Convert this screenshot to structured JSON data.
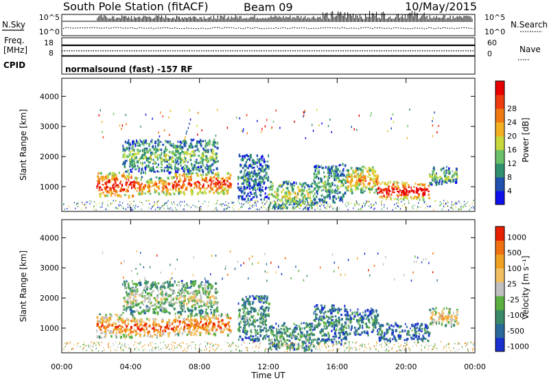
{
  "header": {
    "title": "South Pole Station (fitACF)",
    "beam": "Beam 09",
    "date": "10/May/2015"
  },
  "top_panels": {
    "nsky_label": "N.Sky",
    "nsearch_label": "N.Search",
    "freq_label_line1": "Freq.",
    "freq_label_line2": "[MHz]",
    "nave_label": "Nave",
    "cpid_label": "CPID",
    "cpid_text": "normalsound (fast) -157 RF",
    "noise_ticks_left": [
      "10^5",
      "10^0"
    ],
    "noise_ticks_right": [
      "10^5",
      "10^0"
    ],
    "freq_ticks": [
      "18",
      "8"
    ],
    "nave_ticks": [
      "60",
      "0"
    ]
  },
  "chart_data": [
    {
      "type": "heatmap",
      "title": "",
      "xlabel": "",
      "ylabel": "Slant Range [km]",
      "xlim": [
        0,
        24
      ],
      "ylim": [
        180,
        4600
      ],
      "yticks": [
        "1000",
        "2000",
        "3000",
        "4000"
      ],
      "colorbar_label": "Power [dB]",
      "colorbar_ticks": [
        "4",
        "8",
        "12",
        "16",
        "20",
        "24",
        "28"
      ],
      "colormap": [
        "#1010ee",
        "#2050b0",
        "#2f8f6e",
        "#6cc06a",
        "#c8d83a",
        "#f4b020",
        "#f07a10",
        "#f03a10",
        "#e80000"
      ],
      "echo_regions": [
        {
          "t0": 2.0,
          "t1": 4.2,
          "r0": 700,
          "r1": 1500,
          "level": 0.85
        },
        {
          "t0": 4.2,
          "t1": 6.5,
          "r0": 750,
          "r1": 1350,
          "level": 0.7
        },
        {
          "t0": 6.5,
          "t1": 9.8,
          "r0": 800,
          "r1": 1500,
          "level": 0.8
        },
        {
          "t0": 3.5,
          "t1": 9.0,
          "r0": 1500,
          "r1": 2600,
          "level": 0.35
        },
        {
          "t0": 10.2,
          "t1": 12.0,
          "r0": 600,
          "r1": 2100,
          "level": 0.25
        },
        {
          "t0": 12.0,
          "t1": 14.6,
          "r0": 300,
          "r1": 1200,
          "level": 0.45
        },
        {
          "t0": 14.6,
          "t1": 16.5,
          "r0": 500,
          "r1": 1800,
          "level": 0.3
        },
        {
          "t0": 16.5,
          "t1": 18.3,
          "r0": 800,
          "r1": 1700,
          "level": 0.6
        },
        {
          "t0": 18.3,
          "t1": 21.3,
          "r0": 600,
          "r1": 1200,
          "level": 0.9
        },
        {
          "t0": 21.3,
          "t1": 23.0,
          "r0": 1100,
          "r1": 1700,
          "level": 0.35
        }
      ]
    },
    {
      "type": "heatmap",
      "title": "",
      "xlabel": "Time UT",
      "ylabel": "Slant Range [km]",
      "xlim": [
        0,
        24
      ],
      "ylim": [
        180,
        4600
      ],
      "xticks": [
        "00:00",
        "04:00",
        "08:00",
        "12:00",
        "16:00",
        "20:00",
        "00:00"
      ],
      "yticks": [
        "1000",
        "2000",
        "3000",
        "4000"
      ],
      "colorbar_label": "Velocity [m s⁻¹]",
      "colorbar_ticks": [
        "1000",
        "500",
        "100",
        "25",
        "-25",
        "-100",
        "-500",
        "-1000"
      ],
      "colormap": [
        "#1a30d0",
        "#2a6a9a",
        "#3a8a6a",
        "#5ab040",
        "#c0c0c0",
        "#f0c060",
        "#f0a020",
        "#f07010",
        "#e82000"
      ],
      "echo_regions": [
        {
          "t0": 2.0,
          "t1": 4.2,
          "r0": 700,
          "r1": 1500,
          "level": 0.75
        },
        {
          "t0": 4.2,
          "t1": 6.5,
          "r0": 750,
          "r1": 1350,
          "level": 0.85
        },
        {
          "t0": 6.5,
          "t1": 9.8,
          "r0": 800,
          "r1": 1500,
          "level": 0.8
        },
        {
          "t0": 3.5,
          "t1": 9.0,
          "r0": 1500,
          "r1": 2600,
          "level": 0.45
        },
        {
          "t0": 10.2,
          "t1": 12.0,
          "r0": 600,
          "r1": 2100,
          "level": 0.3
        },
        {
          "t0": 12.0,
          "t1": 14.6,
          "r0": 300,
          "r1": 1200,
          "level": 0.3
        },
        {
          "t0": 14.6,
          "t1": 16.5,
          "r0": 500,
          "r1": 1800,
          "level": 0.25
        },
        {
          "t0": 16.5,
          "t1": 18.3,
          "r0": 800,
          "r1": 1700,
          "level": 0.25
        },
        {
          "t0": 18.3,
          "t1": 21.3,
          "r0": 600,
          "r1": 1200,
          "level": 0.2
        },
        {
          "t0": 21.3,
          "t1": 23.0,
          "r0": 1100,
          "r1": 1700,
          "level": 0.6
        }
      ]
    }
  ]
}
